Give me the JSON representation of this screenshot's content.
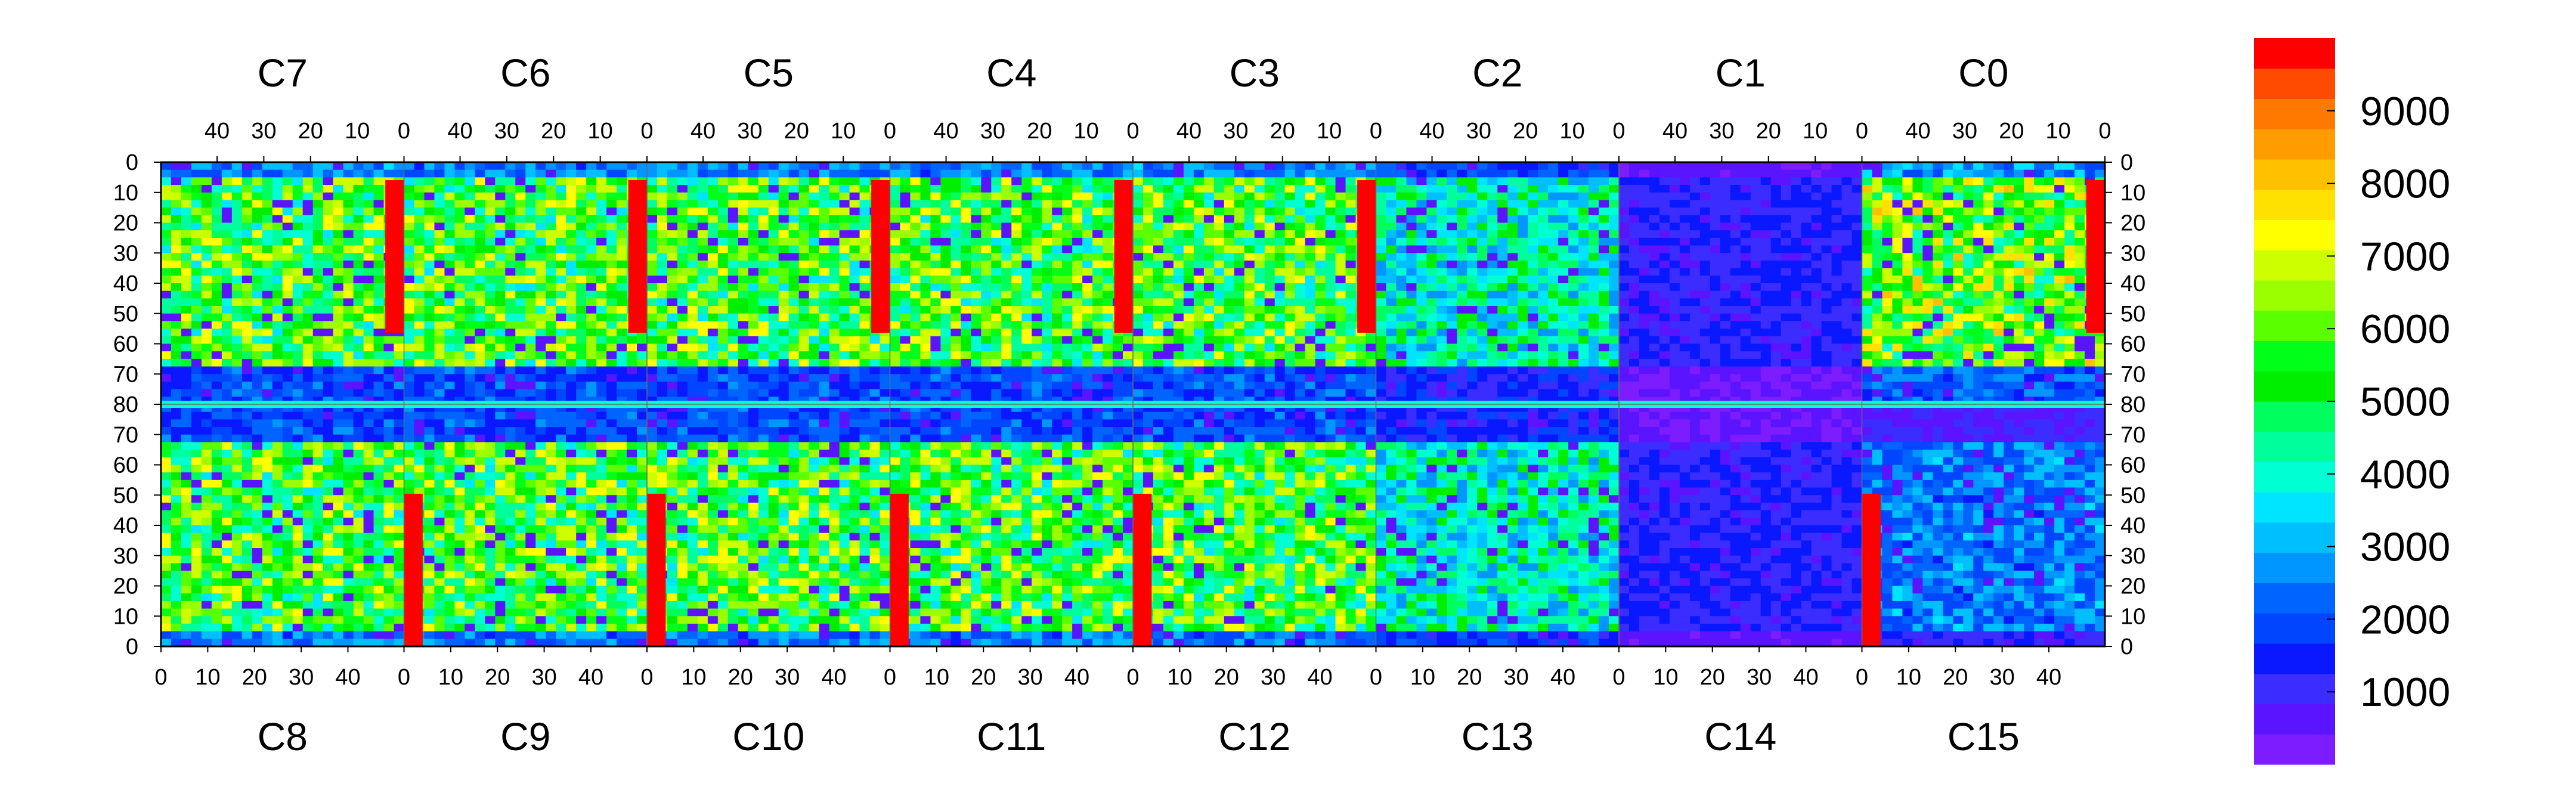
{
  "chart_data": {
    "type": "heatmap",
    "title": "",
    "top_chips": [
      "C7",
      "C6",
      "C5",
      "C4",
      "C3",
      "C2",
      "C1",
      "C0"
    ],
    "bottom_chips": [
      "C8",
      "C9",
      "C10",
      "C11",
      "C12",
      "C13",
      "C14",
      "C15"
    ],
    "top_column_ticks": [
      "40",
      "30",
      "20",
      "10",
      "0"
    ],
    "bottom_column_ticks": [
      "0",
      "10",
      "20",
      "30",
      "40"
    ],
    "left_row_ticks": [
      "0",
      "10",
      "20",
      "30",
      "40",
      "50",
      "60",
      "70",
      "80",
      "70",
      "60",
      "50",
      "40",
      "30",
      "20",
      "10",
      "0"
    ],
    "right_row_ticks": [
      "0",
      "10",
      "20",
      "30",
      "40",
      "50",
      "60",
      "70",
      "80",
      "70",
      "60",
      "50",
      "40",
      "30",
      "20",
      "10",
      "0"
    ],
    "columns_per_chip": 52,
    "rows_per_half": 80,
    "zlim": [
      0,
      10000
    ],
    "colorbar": {
      "ticks": [
        "1000",
        "2000",
        "3000",
        "4000",
        "5000",
        "6000",
        "7000",
        "8000",
        "9000"
      ],
      "tick_values": [
        1000,
        2000,
        3000,
        4000,
        5000,
        6000,
        7000,
        8000,
        9000
      ],
      "colors": [
        "#7d1dff",
        "#5a14ff",
        "#3b2dff",
        "#0a18ff",
        "#0046ff",
        "#0064ff",
        "#0096ff",
        "#00bfff",
        "#00e5ff",
        "#00ffd2",
        "#00ff9c",
        "#00ff5e",
        "#00ee00",
        "#00ff19",
        "#5aff00",
        "#9bff00",
        "#cdff00",
        "#ffff00",
        "#ffe100",
        "#ffc000",
        "#ff9d00",
        "#ff7800",
        "#ff4b00",
        "#ff0000"
      ]
    },
    "summary_by_chip": {
      "C7": {
        "typical": 5500,
        "hot_columns": [
          0
        ]
      },
      "C6": {
        "typical": 5500,
        "hot_columns": [
          0
        ]
      },
      "C5": {
        "typical": 5500,
        "hot_columns": [
          0
        ]
      },
      "C4": {
        "typical": 5500,
        "hot_columns": [
          0
        ]
      },
      "C3": {
        "typical": 5500,
        "hot_columns": [
          0
        ]
      },
      "C2": {
        "typical": 4000,
        "hot_columns": []
      },
      "C1": {
        "typical": 1200,
        "hot_columns": []
      },
      "C0": {
        "typical": 6000,
        "hot_columns": [
          0
        ]
      },
      "C8": {
        "typical": 5500,
        "hot_columns": []
      },
      "C9": {
        "typical": 5500,
        "hot_columns": [
          0
        ]
      },
      "C10": {
        "typical": 5500,
        "hot_columns": [
          0
        ]
      },
      "C11": {
        "typical": 5500,
        "hot_columns": [
          0
        ]
      },
      "C12": {
        "typical": 5500,
        "hot_columns": [
          0
        ]
      },
      "C13": {
        "typical": 4000,
        "hot_columns": []
      },
      "C14": {
        "typical": 1200,
        "hot_columns": []
      },
      "C15": {
        "typical": 2500,
        "hot_columns": [
          0
        ]
      }
    }
  }
}
